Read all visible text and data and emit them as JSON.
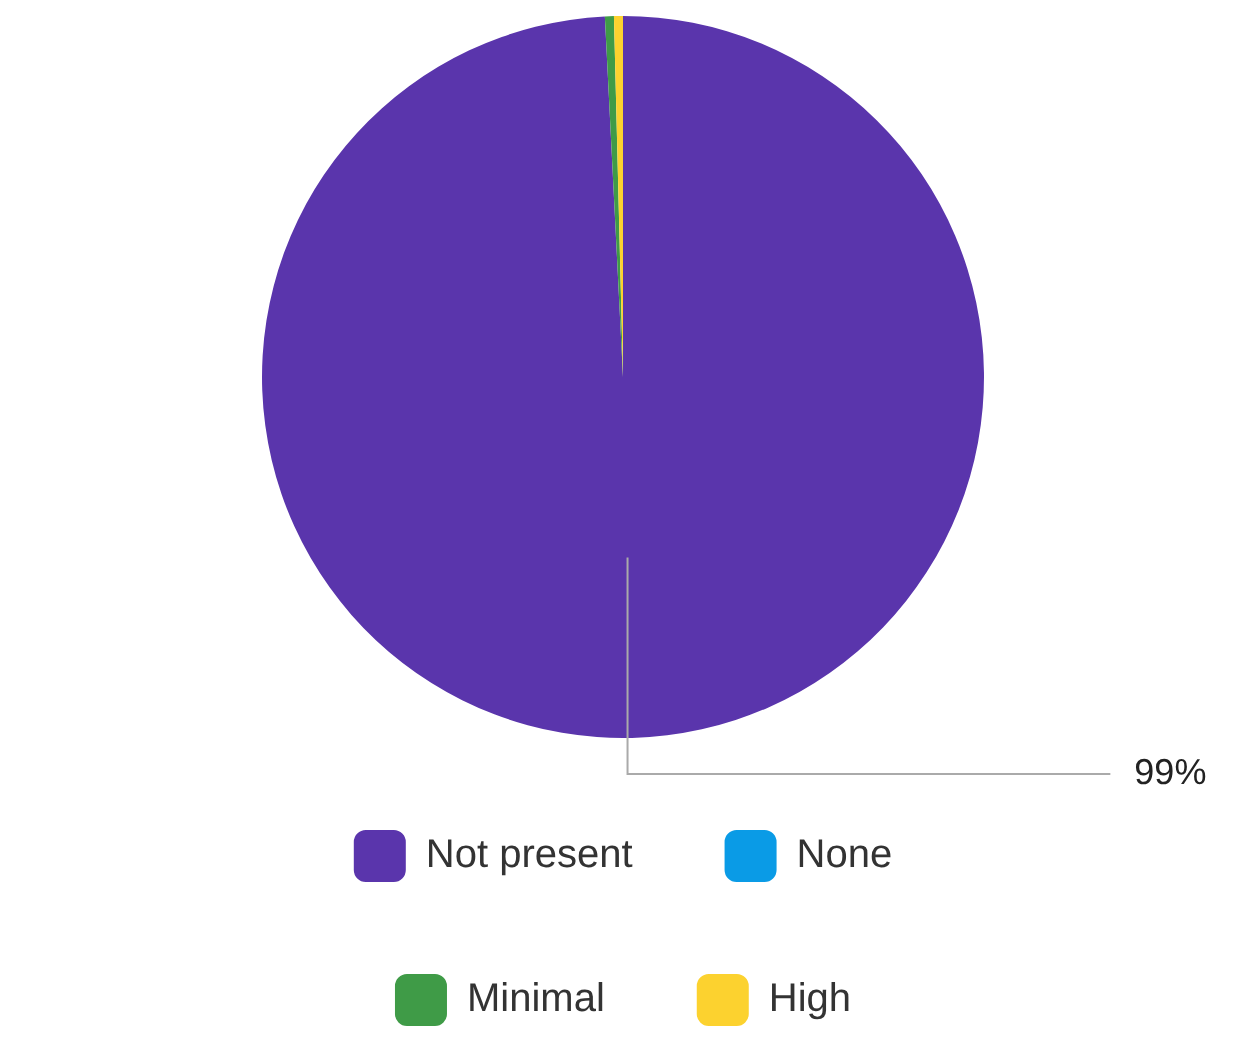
{
  "chart_data": {
    "type": "pie",
    "categories": [
      "Not present",
      "None",
      "Minimal",
      "High"
    ],
    "values": [
      99.2,
      0,
      0.4,
      0.4
    ],
    "colors": [
      "#5a35ac",
      "#0a9be6",
      "#3f9b47",
      "#fcd22f"
    ],
    "value_labels": [
      "99%",
      null,
      null,
      null
    ],
    "legend": "bottom"
  }
}
